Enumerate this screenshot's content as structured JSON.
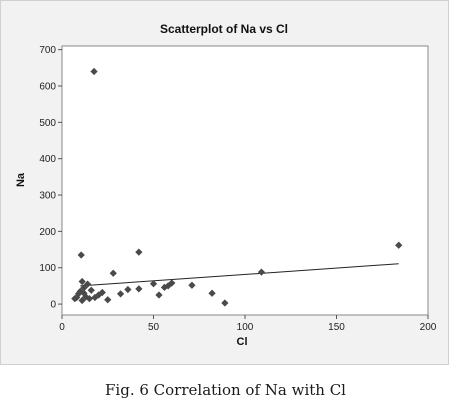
{
  "caption": "Fig. 6 Correlation of Na with Cl",
  "chart_data": {
    "type": "scatter",
    "title": "Scatterplot of Na vs Cl",
    "xlabel": "Cl",
    "ylabel": "Na",
    "xlim": [
      0,
      200
    ],
    "ylim": [
      -30,
      710
    ],
    "xticks": [
      0,
      50,
      100,
      150,
      200
    ],
    "yticks": [
      0,
      100,
      200,
      300,
      400,
      500,
      600,
      700
    ],
    "grid": false,
    "legend": "none",
    "colors": {
      "point": "#4a4a4a",
      "line": "#222222",
      "plot_bg": "#ffffff",
      "panel_bg": "#f2f2f2"
    },
    "points": [
      {
        "x": 17.5,
        "y": 640
      },
      {
        "x": 10.5,
        "y": 135
      },
      {
        "x": 42,
        "y": 143
      },
      {
        "x": 184,
        "y": 162
      },
      {
        "x": 28,
        "y": 85
      },
      {
        "x": 109,
        "y": 88
      },
      {
        "x": 11,
        "y": 62
      },
      {
        "x": 14,
        "y": 55
      },
      {
        "x": 12,
        "y": 45
      },
      {
        "x": 10,
        "y": 35
      },
      {
        "x": 9,
        "y": 28
      },
      {
        "x": 13,
        "y": 20
      },
      {
        "x": 15,
        "y": 15
      },
      {
        "x": 8,
        "y": 18
      },
      {
        "x": 7,
        "y": 15
      },
      {
        "x": 11,
        "y": 10
      },
      {
        "x": 12,
        "y": 30
      },
      {
        "x": 16,
        "y": 38
      },
      {
        "x": 20,
        "y": 25
      },
      {
        "x": 22,
        "y": 32
      },
      {
        "x": 18,
        "y": 18
      },
      {
        "x": 25,
        "y": 12
      },
      {
        "x": 32,
        "y": 28
      },
      {
        "x": 36,
        "y": 40
      },
      {
        "x": 42,
        "y": 42
      },
      {
        "x": 50,
        "y": 56
      },
      {
        "x": 53,
        "y": 25
      },
      {
        "x": 56,
        "y": 46
      },
      {
        "x": 58,
        "y": 50
      },
      {
        "x": 60,
        "y": 58
      },
      {
        "x": 71,
        "y": 52
      },
      {
        "x": 82,
        "y": 30
      },
      {
        "x": 89,
        "y": 3
      }
    ],
    "fit_line": {
      "x": [
        10,
        184
      ],
      "y": [
        50,
        111
      ]
    }
  }
}
